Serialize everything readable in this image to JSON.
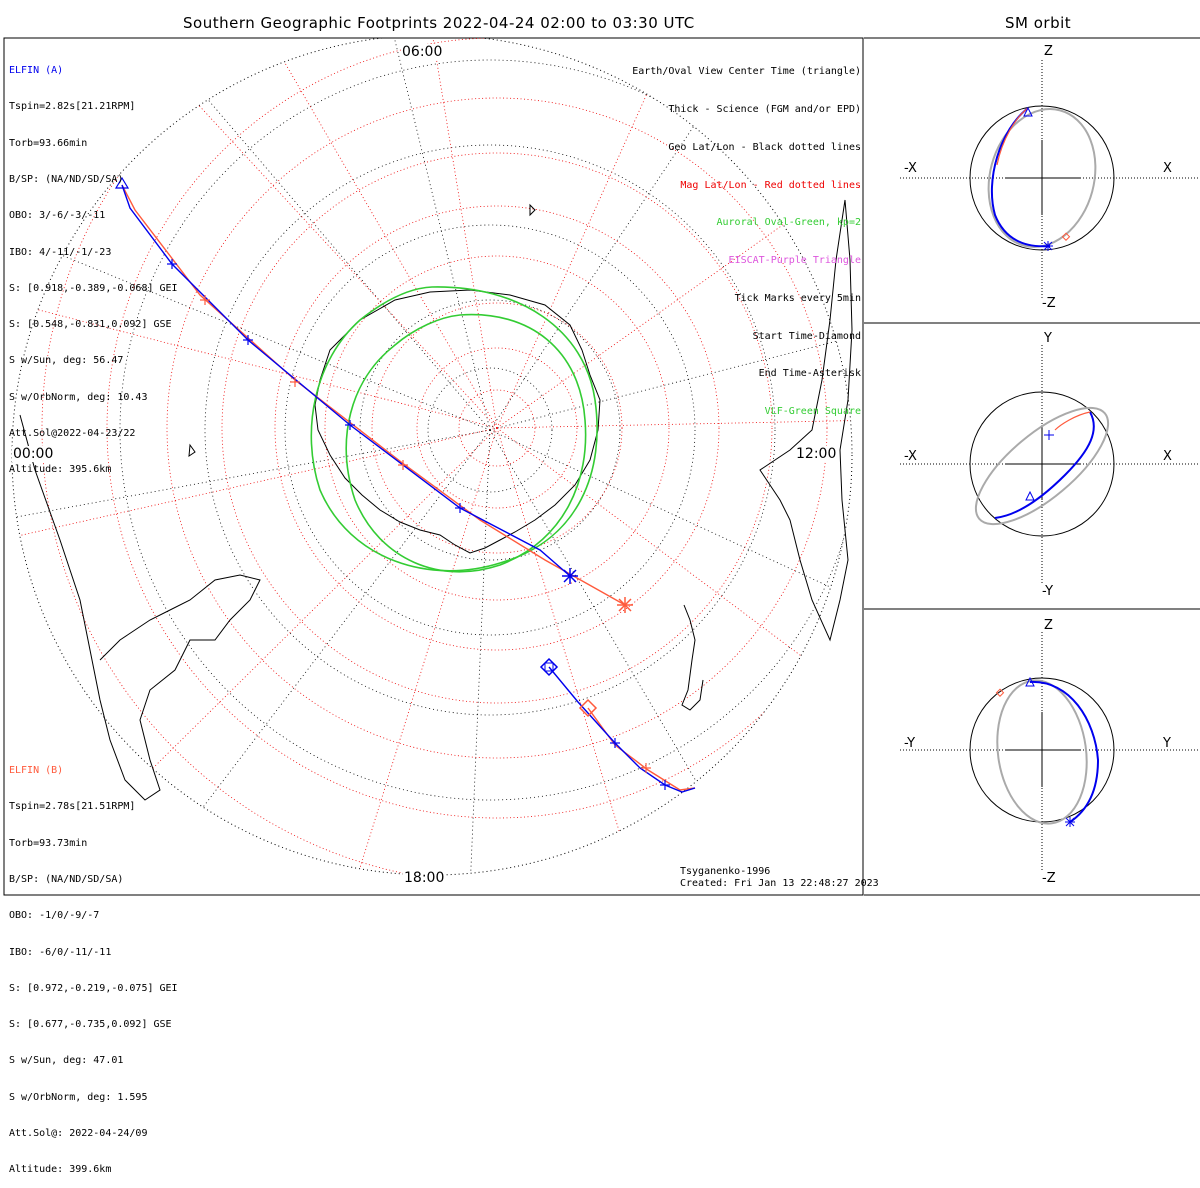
{
  "main_title": "Southern Geographic Footprints 2022-04-24 02:00 to 03:30 UTC",
  "orbit_title": "SM orbit",
  "clock_labels": {
    "top": "06:00",
    "left": "00:00",
    "right": "12:00",
    "bottom": "18:00"
  },
  "elfin_a": {
    "name": "ELFIN (A)",
    "color": "#0000ee",
    "lines": [
      "Tspin=2.82s[21.21RPM]",
      "Torb=93.66min",
      "B/SP: (NA/ND/SD/SA)",
      "OBO: 3/-6/-3/-11",
      "IBO: 4/-11/-1/-23",
      "S: [0.918,-0.389,-0.068] GEI",
      "S: [0.548,-0.831,0.092] GSE",
      "S w/Sun, deg: 56.47",
      "S w/OrbNorm, deg: 10.43",
      "Att.Sol@2022-04-23/22",
      "Altitude: 395.6km"
    ]
  },
  "elfin_b": {
    "name": "ELFIN (B)",
    "color": "#ff5a3c",
    "lines": [
      "Tspin=2.78s[21.51RPM]",
      "Torb=93.73min",
      "B/SP: (NA/ND/SD/SA)",
      "OBO: -1/0/-9/-7",
      "IBO: -6/0/-11/-11",
      "S: [0.972,-0.219,-0.075] GEI",
      "S: [0.677,-0.735,0.092] GSE",
      "S w/Sun, deg: 47.01",
      "S w/OrbNorm, deg: 1.595",
      "Att.Sol@: 2022-04-24/09",
      "Altitude: 399.6km"
    ]
  },
  "legend": [
    {
      "text": "Earth/Oval View Center Time (triangle)",
      "color": "#000000"
    },
    {
      "text": "Thick - Science (FGM and/or EPD)",
      "color": "#000000"
    },
    {
      "text": "Geo Lat/Lon - Black dotted lines",
      "color": "#000000"
    },
    {
      "text": "Mag Lat/Lon - Red dotted lines",
      "color": "#ee0000"
    },
    {
      "text": "Auroral Oval-Green, kp=2",
      "color": "#33cc33"
    },
    {
      "text": "EISCAT-Purple Triangle",
      "color": "#dd55dd"
    },
    {
      "text": "Tick Marks every 5min",
      "color": "#000000"
    },
    {
      "text": "Start Time-Diamond",
      "color": "#000000"
    },
    {
      "text": "End Time-Asterisk",
      "color": "#000000"
    },
    {
      "text": "VLF-Green Square",
      "color": "#33cc33"
    }
  ],
  "model": "Tsyganenko-1996",
  "created": "Created: Fri Jan 13 22:48:27 2023",
  "orbit_panels": [
    {
      "top": "Z",
      "bottom": "-Z",
      "left": "-X",
      "right": "X"
    },
    {
      "top": "Y",
      "bottom": "-Y",
      "left": "-X",
      "right": "X"
    },
    {
      "top": "Z",
      "bottom": "-Z",
      "left": "-Y",
      "right": "Y"
    }
  ],
  "colors": {
    "elfin_a_track": "#0000ee",
    "elfin_b_track": "#ff5a3c",
    "aurora_oval": "#33cc33",
    "mag_grid": "#ee0000",
    "geo_grid": "#000000",
    "orbit_plane": "#aaaaaa"
  }
}
